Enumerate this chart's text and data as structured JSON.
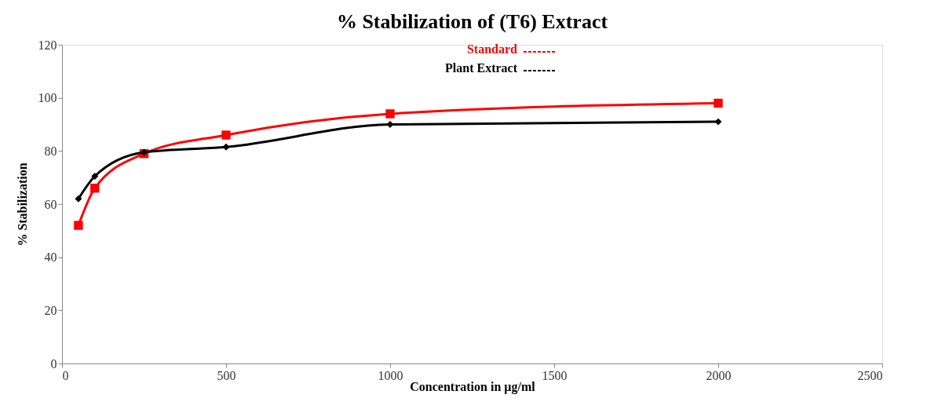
{
  "chart_data": {
    "type": "line",
    "title": "% Stabilization of (T6) Extract",
    "xlabel": "Concentration in µg/ml",
    "ylabel": "% Stabilization",
    "x": [
      50,
      100,
      250,
      500,
      1000,
      2000
    ],
    "series": [
      {
        "name": "Standard",
        "color": "#ff0000",
        "marker": "square",
        "values": [
          52,
          66,
          79,
          86,
          94,
          98
        ]
      },
      {
        "name": "Plant Extract",
        "color": "#000000",
        "marker": "diamond",
        "values": [
          62,
          70.5,
          79.5,
          81.5,
          90,
          91
        ]
      }
    ],
    "xlim": [
      0,
      2500
    ],
    "xticks": [
      0,
      500,
      1000,
      1500,
      2000,
      2500
    ],
    "ylim": [
      0,
      120
    ],
    "yticks": [
      0,
      20,
      40,
      60,
      80,
      100,
      120
    ],
    "grid": false,
    "legend": "top",
    "line_style": "solid"
  }
}
